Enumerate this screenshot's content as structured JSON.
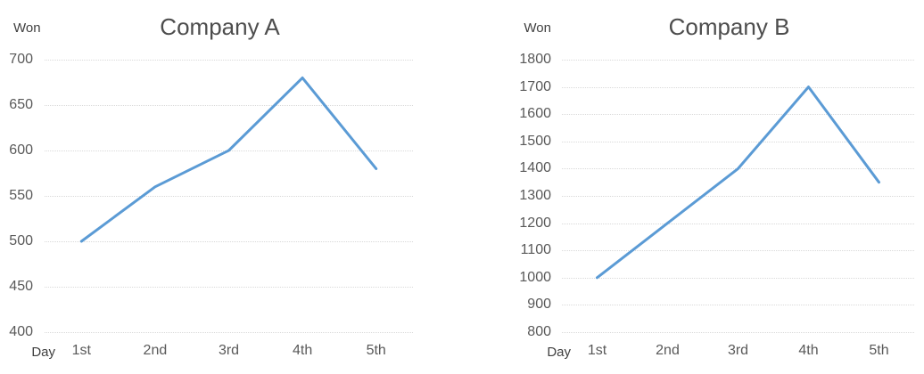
{
  "chart_data": [
    {
      "type": "line",
      "title": "Company A",
      "ylabel": "Won",
      "xlabel": "Day",
      "categories": [
        "1st",
        "2nd",
        "3rd",
        "4th",
        "5th"
      ],
      "values": [
        500,
        560,
        600,
        680,
        580
      ],
      "y_ticks": [
        700,
        650,
        600,
        550,
        500,
        450,
        400
      ],
      "ylim": [
        400,
        700
      ],
      "grid": true,
      "legend": false,
      "line_color": "#5B9BD5",
      "grid_color": "#D9D9D9",
      "tick_color": "#595959",
      "title_color": "#4D4D4D"
    },
    {
      "type": "line",
      "title": "Company B",
      "ylabel": "Won",
      "xlabel": "Day",
      "categories": [
        "1st",
        "2nd",
        "3rd",
        "4th",
        "5th"
      ],
      "values": [
        1000,
        1200,
        1400,
        1700,
        1350
      ],
      "y_ticks": [
        1800,
        1700,
        1600,
        1500,
        1400,
        1300,
        1200,
        1100,
        1000,
        900,
        800
      ],
      "ylim": [
        800,
        1800
      ],
      "grid": true,
      "legend": false,
      "line_color": "#5B9BD5",
      "grid_color": "#D9D9D9",
      "tick_color": "#595959",
      "title_color": "#4D4D4D"
    }
  ]
}
